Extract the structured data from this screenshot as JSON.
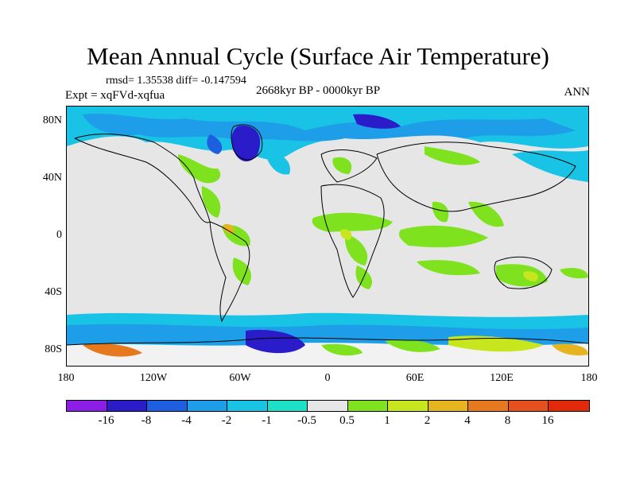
{
  "title": "Mean Annual Cycle (Surface Air Temperature)",
  "stats": "rmsd= 1.35538 diff= -0.147594",
  "period": "2668kyr BP - 0000kyr BP",
  "experiment": "Expt = xqFVd-xqfua",
  "season": "ANN",
  "lat_labels": [
    "80N",
    "40N",
    "0",
    "40S",
    "80S"
  ],
  "lon_labels": [
    "180",
    "120W",
    "60W",
    "0",
    "60E",
    "120E",
    "180"
  ],
  "colorbar": {
    "labels": [
      "-16",
      "-8",
      "-4",
      "-2",
      "-1",
      "-0.5",
      "0.5",
      "1",
      "2",
      "4",
      "8",
      "16"
    ],
    "colors": [
      "#8c1ee6",
      "#2a1cc8",
      "#1d5fe0",
      "#1e9ee8",
      "#19c3e6",
      "#1ee0c8",
      "#e6e6e6",
      "#7ee21e",
      "#c8e61e",
      "#e6b41e",
      "#e6781e",
      "#e6501e",
      "#e02a0a"
    ]
  }
}
